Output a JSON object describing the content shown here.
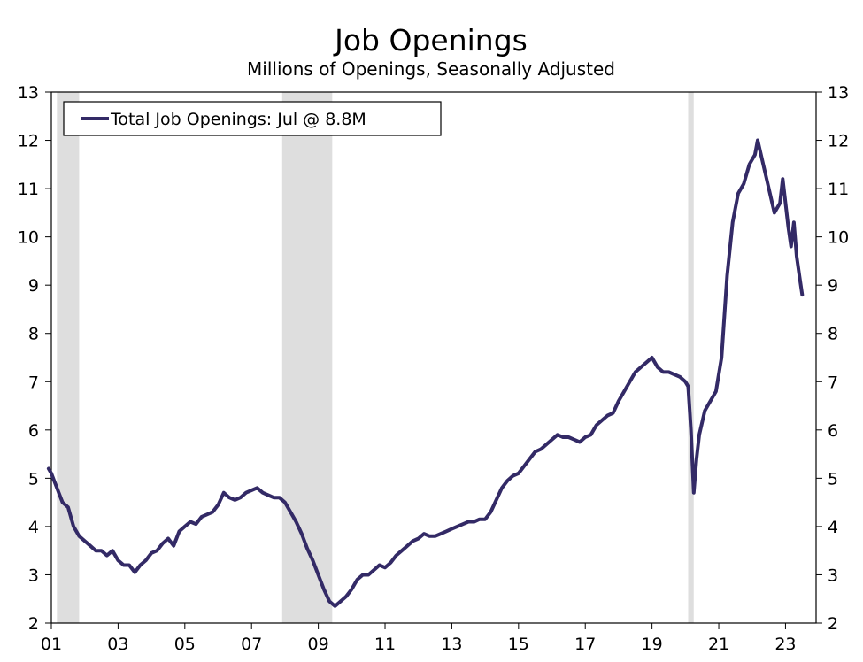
{
  "chart_data": {
    "type": "line",
    "title": "Job Openings",
    "subtitle": "Millions of Openings, Seasonally Adjusted",
    "xlabel": "",
    "ylabel": "",
    "x_tick_labels": [
      "01",
      "03",
      "05",
      "07",
      "09",
      "11",
      "13",
      "15",
      "17",
      "19",
      "21",
      "23"
    ],
    "y_tick_labels": [
      "2",
      "3",
      "4",
      "5",
      "6",
      "7",
      "8",
      "9",
      "10",
      "11",
      "12",
      "13"
    ],
    "ylim": [
      2,
      13
    ],
    "xlim": [
      "2001-01",
      "2023-12"
    ],
    "grid": false,
    "y_axis_both_sides": true,
    "legend": {
      "position": "top-left",
      "entries": [
        "Total Job Openings: Jul @ 8.8M"
      ]
    },
    "recession_shading": [
      {
        "start": "2001-03",
        "end": "2001-11"
      },
      {
        "start": "2007-12",
        "end": "2009-06"
      },
      {
        "start": "2020-02",
        "end": "2020-04"
      }
    ],
    "colors": {
      "series": "#332a66",
      "recession": "#dedede",
      "axis": "#000000"
    },
    "series": [
      {
        "name": "Total Job Openings: Jul @ 8.8M",
        "points": [
          [
            "2000-12",
            5.2
          ],
          [
            "2001-01",
            5.1
          ],
          [
            "2001-03",
            4.8
          ],
          [
            "2001-05",
            4.5
          ],
          [
            "2001-07",
            4.4
          ],
          [
            "2001-09",
            4.0
          ],
          [
            "2001-11",
            3.8
          ],
          [
            "2002-01",
            3.7
          ],
          [
            "2002-03",
            3.6
          ],
          [
            "2002-05",
            3.5
          ],
          [
            "2002-07",
            3.5
          ],
          [
            "2002-09",
            3.4
          ],
          [
            "2002-11",
            3.5
          ],
          [
            "2003-01",
            3.3
          ],
          [
            "2003-03",
            3.2
          ],
          [
            "2003-05",
            3.2
          ],
          [
            "2003-07",
            3.05
          ],
          [
            "2003-09",
            3.2
          ],
          [
            "2003-11",
            3.3
          ],
          [
            "2004-01",
            3.45
          ],
          [
            "2004-03",
            3.5
          ],
          [
            "2004-05",
            3.65
          ],
          [
            "2004-07",
            3.75
          ],
          [
            "2004-09",
            3.6
          ],
          [
            "2004-11",
            3.9
          ],
          [
            "2005-01",
            4.0
          ],
          [
            "2005-03",
            4.1
          ],
          [
            "2005-05",
            4.05
          ],
          [
            "2005-07",
            4.2
          ],
          [
            "2005-09",
            4.25
          ],
          [
            "2005-11",
            4.3
          ],
          [
            "2006-01",
            4.45
          ],
          [
            "2006-03",
            4.7
          ],
          [
            "2006-05",
            4.6
          ],
          [
            "2006-07",
            4.55
          ],
          [
            "2006-09",
            4.6
          ],
          [
            "2006-11",
            4.7
          ],
          [
            "2007-01",
            4.75
          ],
          [
            "2007-03",
            4.8
          ],
          [
            "2007-05",
            4.7
          ],
          [
            "2007-07",
            4.65
          ],
          [
            "2007-09",
            4.6
          ],
          [
            "2007-11",
            4.6
          ],
          [
            "2008-01",
            4.5
          ],
          [
            "2008-03",
            4.3
          ],
          [
            "2008-05",
            4.1
          ],
          [
            "2008-07",
            3.85
          ],
          [
            "2008-09",
            3.55
          ],
          [
            "2008-11",
            3.3
          ],
          [
            "2009-01",
            3.0
          ],
          [
            "2009-03",
            2.7
          ],
          [
            "2009-05",
            2.45
          ],
          [
            "2009-07",
            2.35
          ],
          [
            "2009-09",
            2.45
          ],
          [
            "2009-11",
            2.55
          ],
          [
            "2010-01",
            2.7
          ],
          [
            "2010-03",
            2.9
          ],
          [
            "2010-05",
            3.0
          ],
          [
            "2010-07",
            3.0
          ],
          [
            "2010-09",
            3.1
          ],
          [
            "2010-11",
            3.2
          ],
          [
            "2011-01",
            3.15
          ],
          [
            "2011-03",
            3.25
          ],
          [
            "2011-05",
            3.4
          ],
          [
            "2011-07",
            3.5
          ],
          [
            "2011-09",
            3.6
          ],
          [
            "2011-11",
            3.7
          ],
          [
            "2012-01",
            3.75
          ],
          [
            "2012-03",
            3.85
          ],
          [
            "2012-05",
            3.8
          ],
          [
            "2012-07",
            3.8
          ],
          [
            "2012-09",
            3.85
          ],
          [
            "2012-11",
            3.9
          ],
          [
            "2013-01",
            3.95
          ],
          [
            "2013-03",
            4.0
          ],
          [
            "2013-05",
            4.05
          ],
          [
            "2013-07",
            4.1
          ],
          [
            "2013-09",
            4.1
          ],
          [
            "2013-11",
            4.15
          ],
          [
            "2014-01",
            4.15
          ],
          [
            "2014-03",
            4.3
          ],
          [
            "2014-05",
            4.55
          ],
          [
            "2014-07",
            4.8
          ],
          [
            "2014-09",
            4.95
          ],
          [
            "2014-11",
            5.05
          ],
          [
            "2015-01",
            5.1
          ],
          [
            "2015-03",
            5.25
          ],
          [
            "2015-05",
            5.4
          ],
          [
            "2015-07",
            5.55
          ],
          [
            "2015-09",
            5.6
          ],
          [
            "2015-11",
            5.7
          ],
          [
            "2016-01",
            5.8
          ],
          [
            "2016-03",
            5.9
          ],
          [
            "2016-05",
            5.85
          ],
          [
            "2016-07",
            5.85
          ],
          [
            "2016-09",
            5.8
          ],
          [
            "2016-11",
            5.75
          ],
          [
            "2017-01",
            5.85
          ],
          [
            "2017-03",
            5.9
          ],
          [
            "2017-05",
            6.1
          ],
          [
            "2017-07",
            6.2
          ],
          [
            "2017-09",
            6.3
          ],
          [
            "2017-11",
            6.35
          ],
          [
            "2018-01",
            6.6
          ],
          [
            "2018-03",
            6.8
          ],
          [
            "2018-05",
            7.0
          ],
          [
            "2018-07",
            7.2
          ],
          [
            "2018-09",
            7.3
          ],
          [
            "2018-11",
            7.4
          ],
          [
            "2019-01",
            7.5
          ],
          [
            "2019-03",
            7.3
          ],
          [
            "2019-05",
            7.2
          ],
          [
            "2019-07",
            7.2
          ],
          [
            "2019-09",
            7.15
          ],
          [
            "2019-11",
            7.1
          ],
          [
            "2020-01",
            7.0
          ],
          [
            "2020-02",
            6.9
          ],
          [
            "2020-03",
            6.0
          ],
          [
            "2020-04",
            4.7
          ],
          [
            "2020-05",
            5.4
          ],
          [
            "2020-06",
            5.9
          ],
          [
            "2020-08",
            6.4
          ],
          [
            "2020-10",
            6.6
          ],
          [
            "2020-12",
            6.8
          ],
          [
            "2021-02",
            7.5
          ],
          [
            "2021-04",
            9.2
          ],
          [
            "2021-06",
            10.3
          ],
          [
            "2021-08",
            10.9
          ],
          [
            "2021-10",
            11.1
          ],
          [
            "2021-12",
            11.5
          ],
          [
            "2022-02",
            11.7
          ],
          [
            "2022-03",
            12.0
          ],
          [
            "2022-05",
            11.5
          ],
          [
            "2022-07",
            11.0
          ],
          [
            "2022-09",
            10.5
          ],
          [
            "2022-11",
            10.7
          ],
          [
            "2022-12",
            11.2
          ],
          [
            "2023-02",
            10.2
          ],
          [
            "2023-03",
            9.8
          ],
          [
            "2023-04",
            10.3
          ],
          [
            "2023-05",
            9.6
          ],
          [
            "2023-06",
            9.2
          ],
          [
            "2023-07",
            8.8
          ]
        ]
      }
    ]
  }
}
